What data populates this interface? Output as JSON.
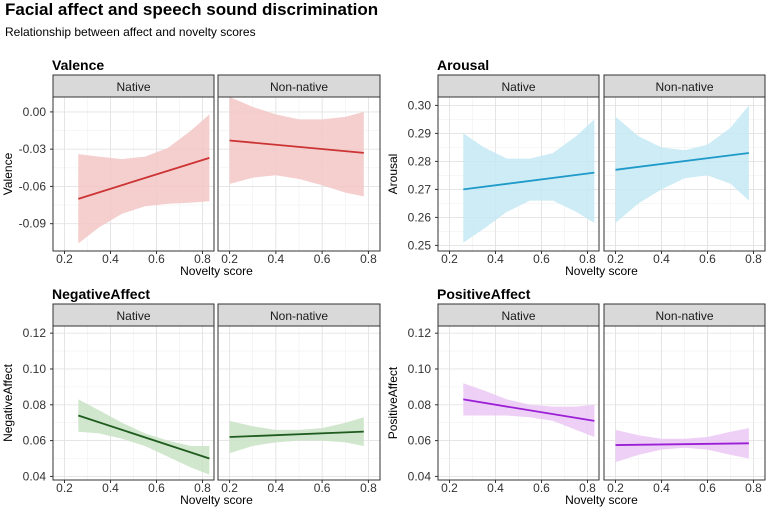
{
  "header": {
    "title": "Facial affect and speech sound discrimination",
    "subtitle": "Relationship between affect and novelty scores"
  },
  "chart_data": [
    {
      "type": "line",
      "title": "Valence",
      "xlabel": "Novelty score",
      "ylabel": "Valence",
      "xlim": [
        0.15,
        0.85
      ],
      "ylim": [
        -0.112,
        0.012
      ],
      "xticks": [
        0.2,
        0.4,
        0.6,
        0.8
      ],
      "xtick_labels": [
        "0.2",
        "0.4",
        "0.6",
        "0.8"
      ],
      "yticks": [
        0.0,
        -0.03,
        -0.06,
        -0.09
      ],
      "ytick_labels": [
        "0.00",
        "-0.03",
        "-0.06",
        "-0.09"
      ],
      "color": "#cc3333",
      "fill": "#f3c6c6",
      "facets": [
        {
          "label": "Native",
          "x": [
            0.26,
            0.83
          ],
          "line": [
            -0.07,
            -0.037
          ],
          "ci_x": [
            0.26,
            0.35,
            0.45,
            0.55,
            0.65,
            0.75,
            0.83
          ],
          "ci_upper": [
            -0.034,
            -0.036,
            -0.038,
            -0.036,
            -0.029,
            -0.015,
            -0.002
          ],
          "ci_lower": [
            -0.106,
            -0.093,
            -0.082,
            -0.076,
            -0.074,
            -0.073,
            -0.072
          ]
        },
        {
          "label": "Non-native",
          "x": [
            0.2,
            0.78
          ],
          "line": [
            -0.023,
            -0.033
          ],
          "ci_x": [
            0.2,
            0.3,
            0.4,
            0.5,
            0.6,
            0.7,
            0.78
          ],
          "ci_upper": [
            0.012,
            0.004,
            -0.002,
            -0.006,
            -0.006,
            -0.004,
            0.0
          ],
          "ci_lower": [
            -0.058,
            -0.053,
            -0.051,
            -0.054,
            -0.059,
            -0.065,
            -0.068
          ]
        }
      ]
    },
    {
      "type": "line",
      "title": "Arousal",
      "xlabel": "Novelty score",
      "ylabel": "Arousal",
      "xlim": [
        0.15,
        0.85
      ],
      "ylim": [
        0.248,
        0.303
      ],
      "xticks": [
        0.2,
        0.4,
        0.6,
        0.8
      ],
      "xtick_labels": [
        "0.2",
        "0.4",
        "0.6",
        "0.8"
      ],
      "yticks": [
        0.25,
        0.26,
        0.27,
        0.28,
        0.29,
        0.3
      ],
      "ytick_labels": [
        "0.25",
        "0.26",
        "0.27",
        "0.28",
        "0.29",
        "0.30"
      ],
      "color": "#1e9ac8",
      "fill": "#c6e9f5",
      "facets": [
        {
          "label": "Native",
          "x": [
            0.26,
            0.83
          ],
          "line": [
            0.27,
            0.276
          ],
          "ci_x": [
            0.26,
            0.35,
            0.45,
            0.55,
            0.65,
            0.75,
            0.83
          ],
          "ci_upper": [
            0.29,
            0.285,
            0.281,
            0.281,
            0.283,
            0.289,
            0.295
          ],
          "ci_lower": [
            0.251,
            0.256,
            0.262,
            0.266,
            0.266,
            0.262,
            0.258
          ]
        },
        {
          "label": "Non-native",
          "x": [
            0.2,
            0.78
          ],
          "line": [
            0.277,
            0.283
          ],
          "ci_x": [
            0.2,
            0.3,
            0.4,
            0.5,
            0.6,
            0.7,
            0.78
          ],
          "ci_upper": [
            0.296,
            0.289,
            0.285,
            0.284,
            0.286,
            0.292,
            0.3
          ],
          "ci_lower": [
            0.258,
            0.265,
            0.27,
            0.274,
            0.275,
            0.272,
            0.266
          ]
        }
      ]
    },
    {
      "type": "line",
      "title": "NegativeAffect",
      "xlabel": "Novelty score",
      "ylabel": "NegativeAffect",
      "xlim": [
        0.15,
        0.85
      ],
      "ylim": [
        0.038,
        0.124
      ],
      "xticks": [
        0.2,
        0.4,
        0.6,
        0.8
      ],
      "xtick_labels": [
        "0.2",
        "0.4",
        "0.6",
        "0.8"
      ],
      "yticks": [
        0.04,
        0.06,
        0.08,
        0.1,
        0.12
      ],
      "ytick_labels": [
        "0.04",
        "0.06",
        "0.08",
        "0.10",
        "0.12"
      ],
      "color": "#1f5c1f",
      "fill": "#c9e3c4",
      "facets": [
        {
          "label": "Native",
          "x": [
            0.26,
            0.83
          ],
          "line": [
            0.074,
            0.05
          ],
          "ci_x": [
            0.26,
            0.35,
            0.45,
            0.55,
            0.65,
            0.75,
            0.83
          ],
          "ci_upper": [
            0.083,
            0.077,
            0.07,
            0.064,
            0.06,
            0.057,
            0.057
          ],
          "ci_lower": [
            0.065,
            0.064,
            0.061,
            0.057,
            0.051,
            0.045,
            0.041
          ]
        },
        {
          "label": "Non-native",
          "x": [
            0.2,
            0.78
          ],
          "line": [
            0.062,
            0.065
          ],
          "ci_x": [
            0.2,
            0.3,
            0.4,
            0.5,
            0.6,
            0.7,
            0.78
          ],
          "ci_upper": [
            0.071,
            0.068,
            0.066,
            0.066,
            0.067,
            0.07,
            0.073
          ],
          "ci_lower": [
            0.053,
            0.057,
            0.059,
            0.06,
            0.06,
            0.059,
            0.057
          ]
        }
      ]
    },
    {
      "type": "line",
      "title": "PositiveAffect",
      "xlabel": "Novelty score",
      "ylabel": "PositiveAffect",
      "xlim": [
        0.15,
        0.85
      ],
      "ylim": [
        0.038,
        0.124
      ],
      "xticks": [
        0.2,
        0.4,
        0.6,
        0.8
      ],
      "xtick_labels": [
        "0.2",
        "0.4",
        "0.6",
        "0.8"
      ],
      "yticks": [
        0.04,
        0.06,
        0.08,
        0.1,
        0.12
      ],
      "ytick_labels": [
        "0.04",
        "0.06",
        "0.08",
        "0.10",
        "0.12"
      ],
      "color": "#9b1fd6",
      "fill": "#ebc8f5",
      "facets": [
        {
          "label": "Native",
          "x": [
            0.26,
            0.83
          ],
          "line": [
            0.083,
            0.071
          ],
          "ci_x": [
            0.26,
            0.35,
            0.45,
            0.55,
            0.65,
            0.75,
            0.83
          ],
          "ci_upper": [
            0.092,
            0.088,
            0.083,
            0.08,
            0.079,
            0.079,
            0.08
          ],
          "ci_lower": [
            0.074,
            0.074,
            0.074,
            0.073,
            0.071,
            0.066,
            0.062
          ]
        },
        {
          "label": "Non-native",
          "x": [
            0.2,
            0.78
          ],
          "line": [
            0.0575,
            0.0585
          ],
          "ci_x": [
            0.2,
            0.3,
            0.4,
            0.5,
            0.6,
            0.7,
            0.78
          ],
          "ci_upper": [
            0.066,
            0.063,
            0.061,
            0.061,
            0.062,
            0.065,
            0.067
          ],
          "ci_lower": [
            0.048,
            0.052,
            0.055,
            0.056,
            0.055,
            0.052,
            0.05
          ]
        }
      ]
    }
  ]
}
